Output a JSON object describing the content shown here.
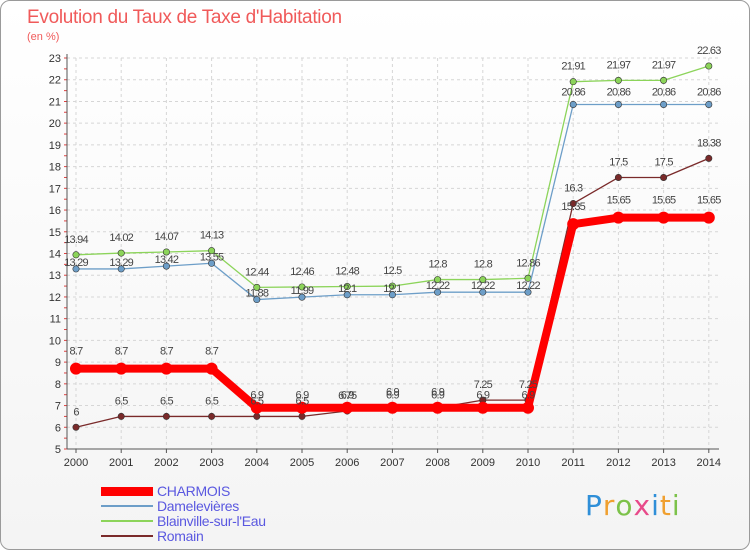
{
  "header": {
    "title": "Evolution du Taux de Taxe d'Habitation",
    "subtitle": "(en %)"
  },
  "chart_data": {
    "type": "line",
    "title": "Evolution du Taux de Taxe d'Habitation",
    "ylabel": "(en %)",
    "xlabel": "",
    "ylim": [
      5,
      23
    ],
    "yticks": [
      5,
      6,
      7,
      8,
      9,
      10,
      11,
      12,
      13,
      14,
      15,
      16,
      17,
      18,
      19,
      20,
      21,
      22,
      23
    ],
    "grid": true,
    "legend_position": "bottom-left",
    "categories": [
      "2000",
      "2001",
      "2002",
      "2003",
      "2004",
      "2005",
      "2006",
      "2007",
      "2008",
      "2009",
      "2010",
      "2011",
      "2012",
      "2013",
      "2014"
    ],
    "series": [
      {
        "name": "CHARMOIS",
        "color": "#ff0000",
        "values": [
          8.7,
          8.7,
          8.7,
          8.7,
          6.9,
          6.9,
          6.9,
          6.9,
          6.9,
          6.9,
          6.9,
          15.35,
          15.65,
          15.65,
          15.65
        ],
        "labels": [
          "8.7",
          "8.7",
          "8.7",
          "8.7",
          "6.9",
          "6.9",
          "6.9",
          "6.9",
          "6.9",
          "6.9",
          "6.9",
          "15.35",
          "15.65",
          "15.65",
          "15.65"
        ]
      },
      {
        "name": "Damelevières",
        "color": "#6d9ec8",
        "values": [
          13.29,
          13.29,
          13.42,
          13.55,
          11.88,
          11.99,
          12.1,
          12.1,
          12.22,
          12.22,
          12.22,
          20.86,
          20.86,
          20.86,
          20.86
        ],
        "labels": [
          "13.29",
          "13.29",
          "13.42",
          "13.55",
          "11.88",
          "11.99",
          "12.1",
          "12.1",
          "12.22",
          "12.22",
          "12.22",
          "20.86",
          "20.86",
          "20.86",
          "20.86"
        ]
      },
      {
        "name": "Blainville-sur-l'Eau",
        "color": "#8cd45a",
        "values": [
          13.94,
          14.02,
          14.07,
          14.13,
          12.44,
          12.46,
          12.48,
          12.5,
          12.8,
          12.8,
          12.86,
          21.91,
          21.97,
          21.97,
          22.63
        ],
        "labels": [
          "13.94",
          "14.02",
          "14.07",
          "14.13",
          "12.44",
          "12.46",
          "12.48",
          "12.5",
          "12.8",
          "12.8",
          "12.86",
          "21.91",
          "21.97",
          "21.97",
          "22.63"
        ]
      },
      {
        "name": "Romain",
        "color": "#7a2a2a",
        "values": [
          6,
          6.5,
          6.5,
          6.5,
          6.5,
          6.5,
          6.75,
          6.9,
          6.9,
          7.25,
          7.25,
          16.3,
          17.5,
          17.5,
          18.38
        ],
        "labels": [
          "6",
          "6.5",
          "6.5",
          "6.5",
          "6.5",
          "6.5",
          "6.75",
          "6.9",
          "6.9",
          "7.25",
          "7.25",
          "16.3",
          "17.5",
          "17.5",
          "18.38"
        ]
      }
    ]
  },
  "branding": {
    "logo_letters": [
      {
        "ch": "P",
        "color": "#2f8fd8"
      },
      {
        "ch": "r",
        "color": "#f0a030"
      },
      {
        "ch": "o",
        "color": "#7cc24a"
      },
      {
        "ch": "x",
        "color": "#e84a8a"
      },
      {
        "ch": "i",
        "color": "#2f8fd8"
      },
      {
        "ch": "t",
        "color": "#f0a030"
      },
      {
        "ch": "i",
        "color": "#7cc24a"
      }
    ]
  }
}
